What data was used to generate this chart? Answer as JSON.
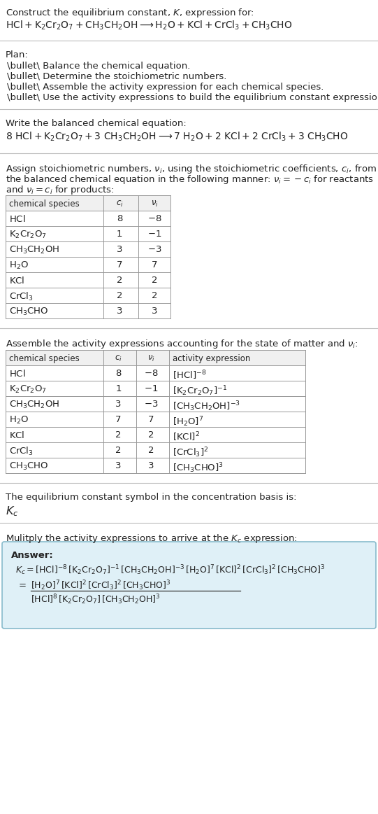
{
  "title_line1": "Construct the equilibrium constant, $K$, expression for:",
  "title_line2": "$\\mathrm{HCl + K_2Cr_2O_7 + CH_3CH_2OH \\longrightarrow H_2O + KCl + CrCl_3 + CH_3CHO}$",
  "plan_header": "Plan:",
  "plan_items": [
    "\\bullet\\ Balance the chemical equation.",
    "\\bullet\\ Determine the stoichiometric numbers.",
    "\\bullet\\ Assemble the activity expression for each chemical species.",
    "\\bullet\\ Use the activity expressions to build the equilibrium constant expression."
  ],
  "balanced_header": "Write the balanced chemical equation:",
  "balanced_eq": "$8\\ \\mathrm{HCl + K_2Cr_2O_7 + 3\\ CH_3CH_2OH \\longrightarrow 7\\ H_2O + 2\\ KCl + 2\\ CrCl_3 + 3\\ CH_3CHO}$",
  "stoich_header_1": "Assign stoichiometric numbers, $\\nu_i$, using the stoichiometric coefficients, $c_i$, from",
  "stoich_header_2": "the balanced chemical equation in the following manner: $\\nu_i = -c_i$ for reactants",
  "stoich_header_3": "and $\\nu_i = c_i$ for products:",
  "table1_headers": [
    "chemical species",
    "$c_i$",
    "$\\nu_i$"
  ],
  "table1_rows": [
    [
      "$\\mathrm{HCl}$",
      "8",
      "$-8$"
    ],
    [
      "$\\mathrm{K_2Cr_2O_7}$",
      "1",
      "$-1$"
    ],
    [
      "$\\mathrm{CH_3CH_2OH}$",
      "3",
      "$-3$"
    ],
    [
      "$\\mathrm{H_2O}$",
      "7",
      "7"
    ],
    [
      "$\\mathrm{KCl}$",
      "2",
      "2"
    ],
    [
      "$\\mathrm{CrCl_3}$",
      "2",
      "2"
    ],
    [
      "$\\mathrm{CH_3CHO}$",
      "3",
      "3"
    ]
  ],
  "activity_header": "Assemble the activity expressions accounting for the state of matter and $\\nu_i$:",
  "table2_headers": [
    "chemical species",
    "$c_i$",
    "$\\nu_i$",
    "activity expression"
  ],
  "table2_rows": [
    [
      "$\\mathrm{HCl}$",
      "8",
      "$-8$",
      "$[\\mathrm{HCl}]^{-8}$"
    ],
    [
      "$\\mathrm{K_2Cr_2O_7}$",
      "1",
      "$-1$",
      "$[\\mathrm{K_2Cr_2O_7}]^{-1}$"
    ],
    [
      "$\\mathrm{CH_3CH_2OH}$",
      "3",
      "$-3$",
      "$[\\mathrm{CH_3CH_2OH}]^{-3}$"
    ],
    [
      "$\\mathrm{H_2O}$",
      "7",
      "7",
      "$[\\mathrm{H_2O}]^{7}$"
    ],
    [
      "$\\mathrm{KCl}$",
      "2",
      "2",
      "$[\\mathrm{KCl}]^{2}$"
    ],
    [
      "$\\mathrm{CrCl_3}$",
      "2",
      "2",
      "$[\\mathrm{CrCl_3}]^{2}$"
    ],
    [
      "$\\mathrm{CH_3CHO}$",
      "3",
      "3",
      "$[\\mathrm{CH_3CHO}]^{3}$"
    ]
  ],
  "kc_header": "The equilibrium constant symbol in the concentration basis is:",
  "kc_symbol": "$K_c$",
  "multiply_header": "Mulitply the activity expressions to arrive at the $K_c$ expression:",
  "answer_label": "Answer:",
  "answer_line1": "$K_c = [\\mathrm{HCl}]^{-8}\\,[\\mathrm{K_2Cr_2O_7}]^{-1}\\,[\\mathrm{CH_3CH_2OH}]^{-3}\\,[\\mathrm{H_2O}]^{7}\\,[\\mathrm{KCl}]^{2}\\,[\\mathrm{CrCl_3}]^{2}\\,[\\mathrm{CH_3CHO}]^{3}$",
  "answer_eq_num": "$[\\mathrm{H_2O}]^{7}\\,[\\mathrm{KCl}]^{2}\\,[\\mathrm{CrCl_3}]^{2}\\,[\\mathrm{CH_3CHO}]^{3}$",
  "answer_eq_den": "$[\\mathrm{HCl}]^{8}\\,[\\mathrm{K_2Cr_2O_7}]\\,[\\mathrm{CH_3CH_2OH}]^{3}$",
  "bg_color": "#ffffff",
  "answer_bg_color": "#dff0f7",
  "table_border_color": "#999999",
  "text_color": "#222222",
  "font_size": 9.5
}
